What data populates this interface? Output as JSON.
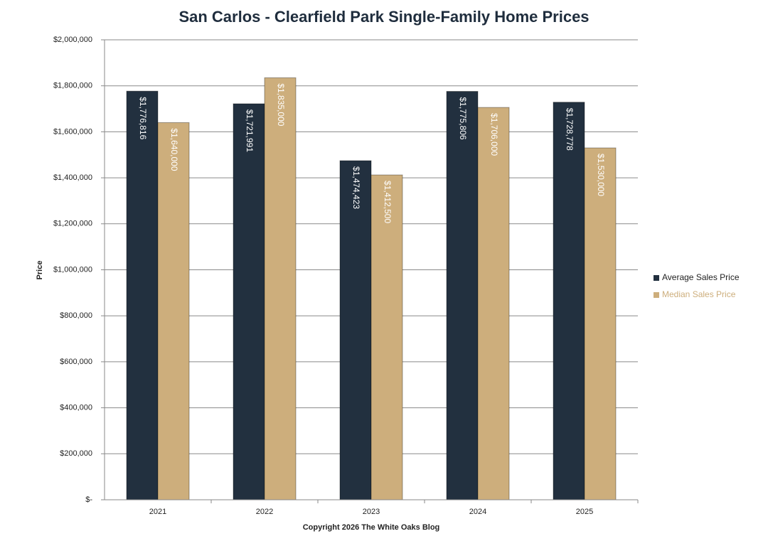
{
  "chart_data": {
    "type": "bar",
    "title": "San Carlos - Clearfield Park Single-Family Home Prices",
    "x_label": "Copyright 2026 The White  Oaks Blog",
    "y_label": "Price",
    "categories": [
      "2021",
      "2022",
      "2023",
      "2024",
      "2025"
    ],
    "series": [
      {
        "name": "Average Sales Price",
        "color": "#22303f",
        "values": [
          1776816,
          1721991,
          1474423,
          1775806,
          1728778
        ],
        "value_labels": [
          "$1,776,816",
          "$1,721,991",
          "$1,474,423",
          "$1,775,806",
          "$1,728,778"
        ]
      },
      {
        "name": "Median Sales Price",
        "color": "#cdae7c",
        "values": [
          1640000,
          1835000,
          1412500,
          1706000,
          1530000
        ],
        "value_labels": [
          "$1,640,000",
          "$1,835,000",
          "$1,412,500",
          "$1,706,000",
          "$1,530,000"
        ]
      }
    ],
    "ylim": [
      0,
      2000000
    ],
    "yticks": [
      {
        "value": 0,
        "label": "$-"
      },
      {
        "value": 200000,
        "label": "$200,000"
      },
      {
        "value": 400000,
        "label": "$400,000"
      },
      {
        "value": 600000,
        "label": "$600,000"
      },
      {
        "value": 800000,
        "label": "$800,000"
      },
      {
        "value": 1000000,
        "label": "$1,000,000"
      },
      {
        "value": 1200000,
        "label": "$1,200,000"
      },
      {
        "value": 1400000,
        "label": "$1,400,000"
      },
      {
        "value": 1600000,
        "label": "$1,600,000"
      },
      {
        "value": 1800000,
        "label": "$1,800,000"
      },
      {
        "value": 2000000,
        "label": "$2,000,000"
      }
    ],
    "grid": true,
    "legend": "right"
  }
}
